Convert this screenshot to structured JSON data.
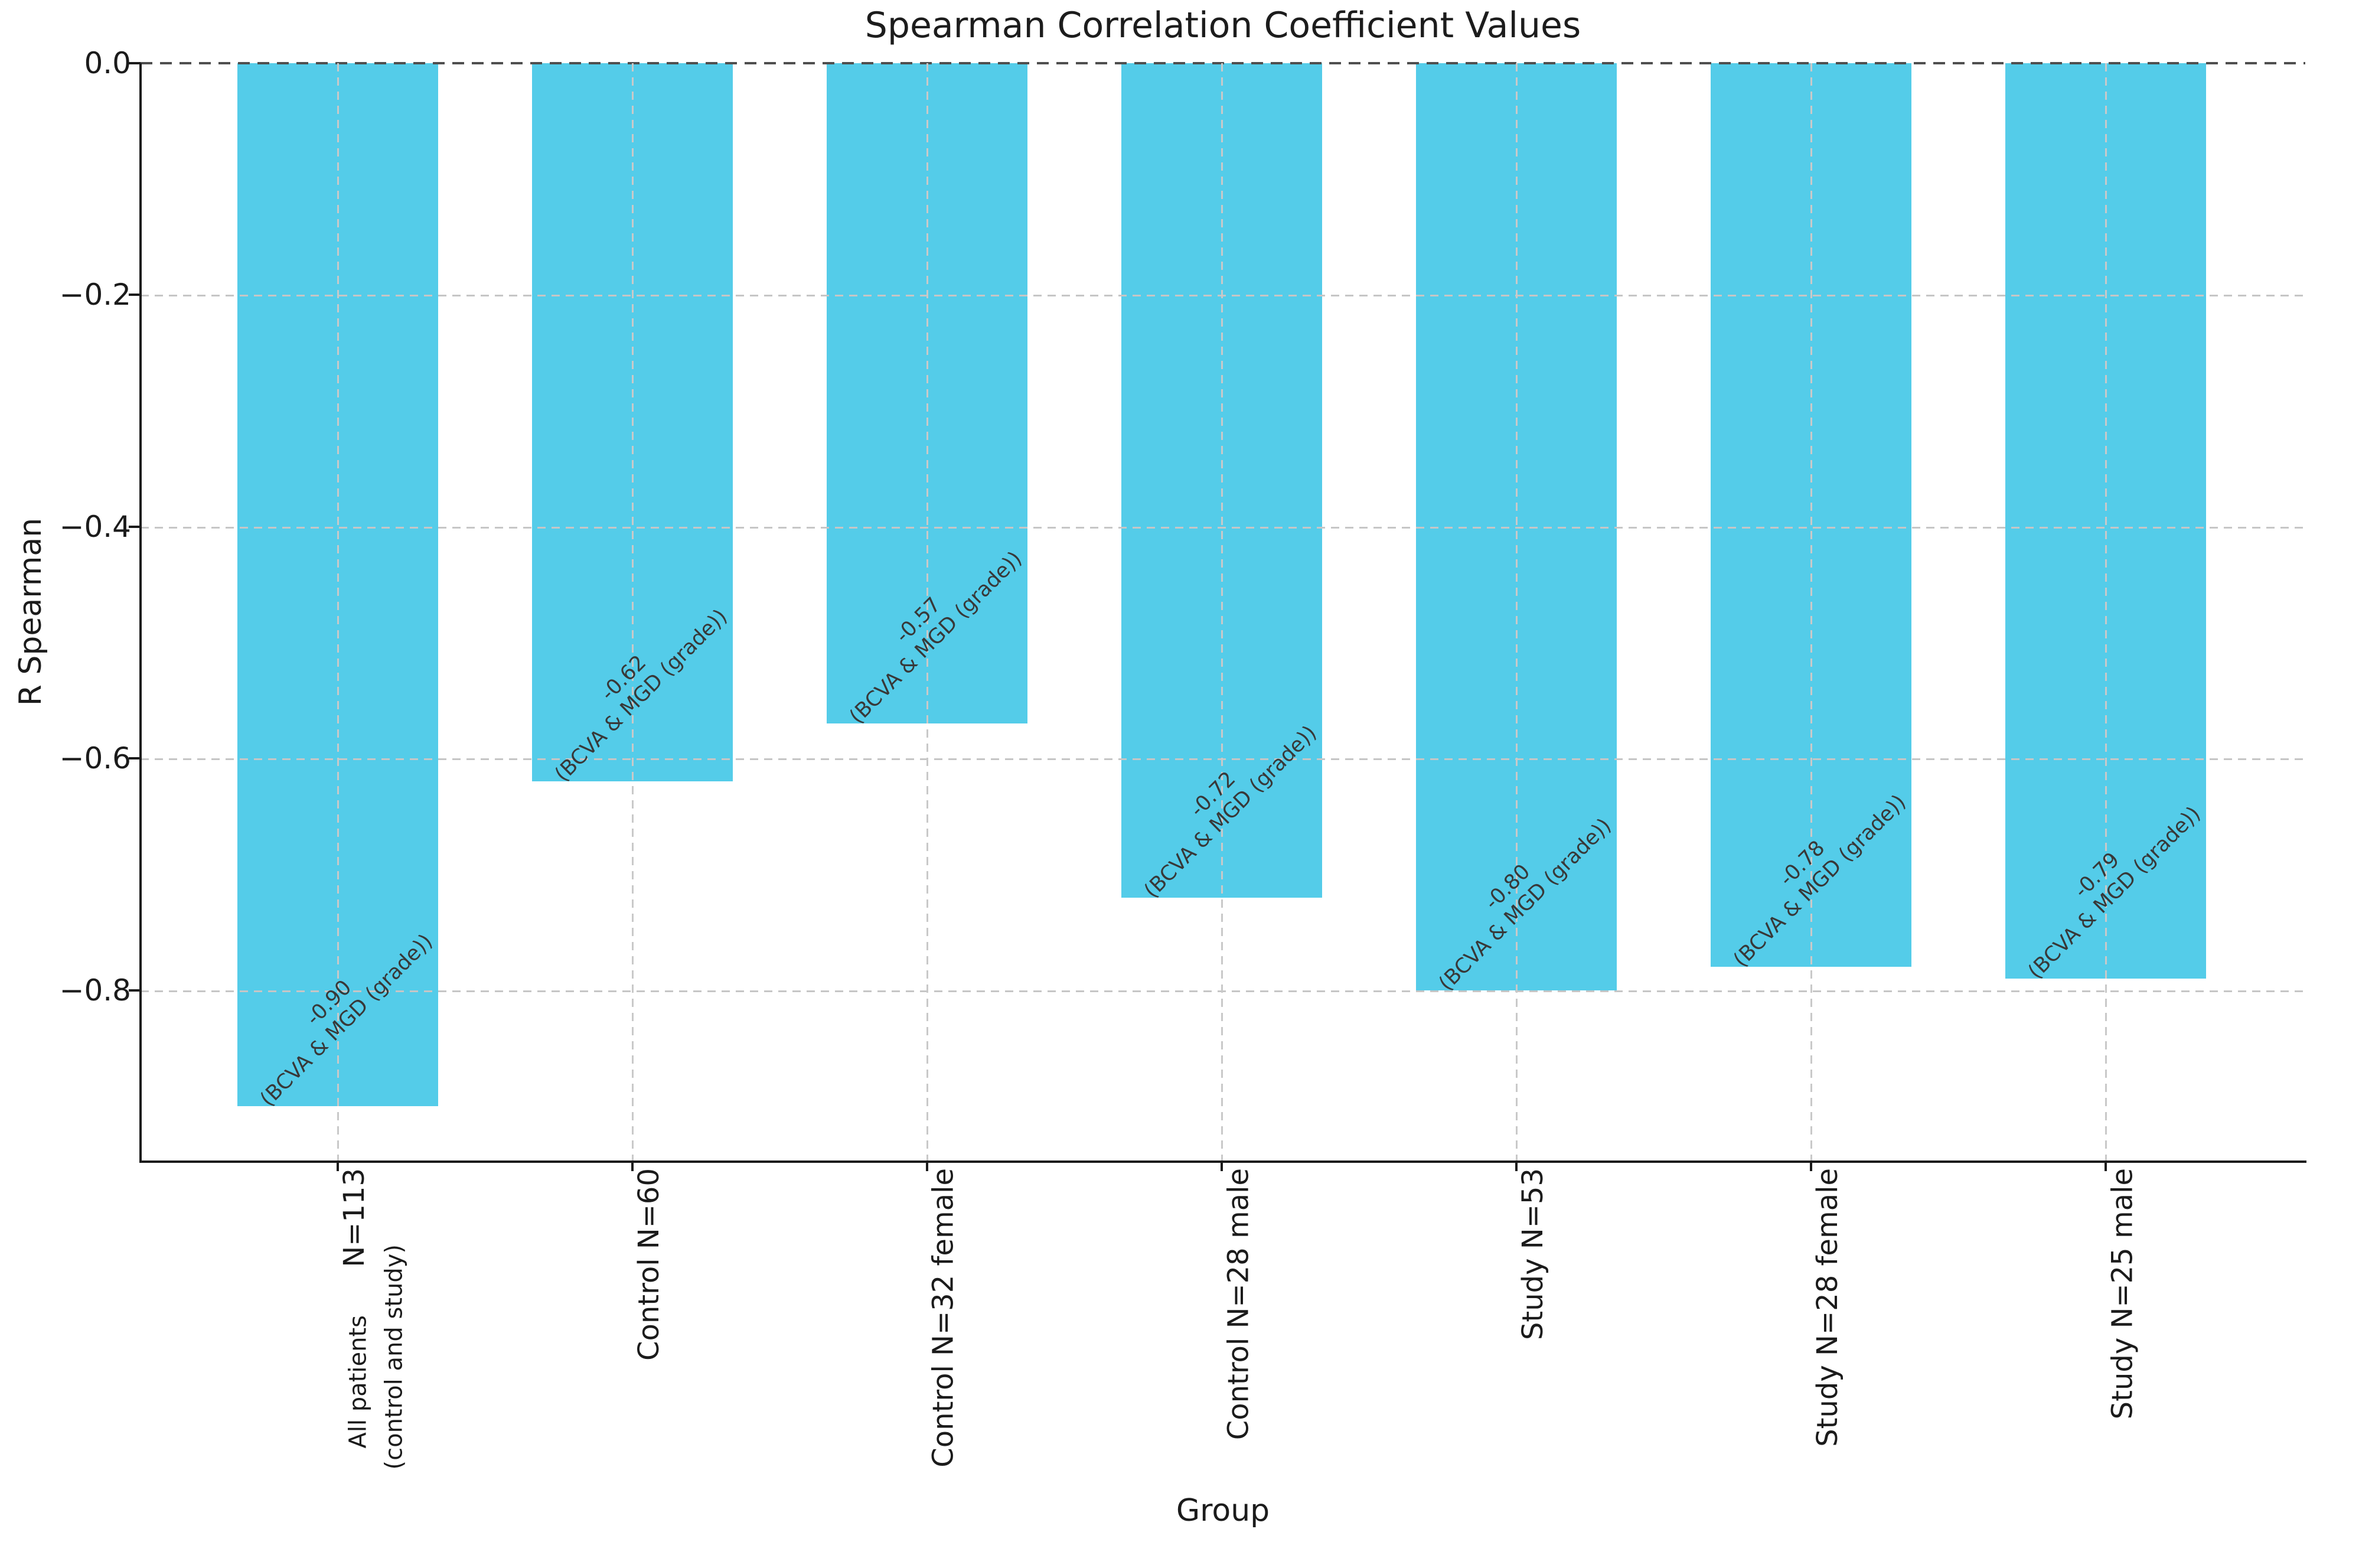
{
  "chart_data": {
    "type": "bar",
    "title": "Spearman Correlation Coefficient Values",
    "xlabel": "Group",
    "ylabel": "R Spearman",
    "ylim": [
      -0.95,
      0.0
    ],
    "yticks": [
      "0.0",
      "−0.2",
      "−0.4",
      "−0.6",
      "−0.8"
    ],
    "ytick_values": [
      0.0,
      -0.2,
      -0.4,
      -0.6,
      -0.8
    ],
    "grid": true,
    "legend": false,
    "bar_color": "#54cce9",
    "categories": [
      "All patients (control and study) N=113",
      "Control N=60",
      "Control N=32 female",
      "Control N=28 male",
      "Study N=53",
      "Study N=28 female",
      "Study N=25 male"
    ],
    "values": [
      -0.9,
      -0.62,
      -0.57,
      -0.72,
      -0.8,
      -0.78,
      -0.79
    ],
    "bar_labels": [
      {
        "value": "-0.90",
        "note": "(BCVA & MGD (grade))"
      },
      {
        "value": "-0.62",
        "note": "(BCVA & MGD (grade))"
      },
      {
        "value": "-0.57",
        "note": "(BCVA & MGD (grade))"
      },
      {
        "value": "-0.72",
        "note": "(BCVA & MGD (grade))"
      },
      {
        "value": "-0.80",
        "note": "(BCVA & MGD (grade))"
      },
      {
        "value": "-0.78",
        "note": "(BCVA & MGD (grade))"
      },
      {
        "value": "-0.79",
        "note": "(BCVA & MGD (grade))"
      }
    ],
    "x_ticks": [
      {
        "label": "N=113",
        "extra_line_1": "All patients",
        "extra_line_2": "(control and study)"
      },
      {
        "label": "Control N=60"
      },
      {
        "label": "Control N=32 female"
      },
      {
        "label": "Control N=28 male"
      },
      {
        "label": "Study N=53"
      },
      {
        "label": "Study N=28 female"
      },
      {
        "label": "Study N=25 male"
      }
    ]
  }
}
